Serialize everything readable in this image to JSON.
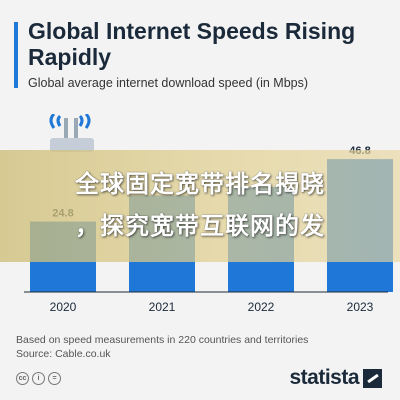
{
  "colors": {
    "accent": "#1f77d8",
    "bar": "#1f77d8",
    "value_label": "#1b2a3a",
    "background": "#f3f3f3",
    "overlay": "#d8c68a"
  },
  "header": {
    "title": "Global Internet Speeds Rising Rapidly",
    "subtitle": "Global average internet download speed (in Mbps)"
  },
  "overlay": {
    "line1": "全球固定宽带排名揭晓",
    "line2": "，探究宽带互联网的发"
  },
  "footer": {
    "note": "Based on speed measurements in 220 countries and territories",
    "source": "Source: Cable.co.uk",
    "logo_text": "statista",
    "license_icons": [
      "cc-icon",
      "by-icon",
      "nd-icon"
    ]
  },
  "icons": {
    "router": "router-icon",
    "logo_mark": "statista-arrow-icon"
  },
  "chart_data": {
    "type": "bar",
    "categories": [
      "2020",
      "2021",
      "2022",
      "2023"
    ],
    "values": [
      24.8,
      null,
      null,
      46.8
    ],
    "value_labels": [
      "24.8",
      "",
      "",
      "46.8"
    ],
    "title": "Global Internet Speeds Rising Rapidly",
    "subtitle": "Global average internet download speed (in Mbps)",
    "xlabel": "",
    "ylabel": "",
    "ylim": [
      0,
      50
    ],
    "grid": false,
    "legend": "none"
  }
}
